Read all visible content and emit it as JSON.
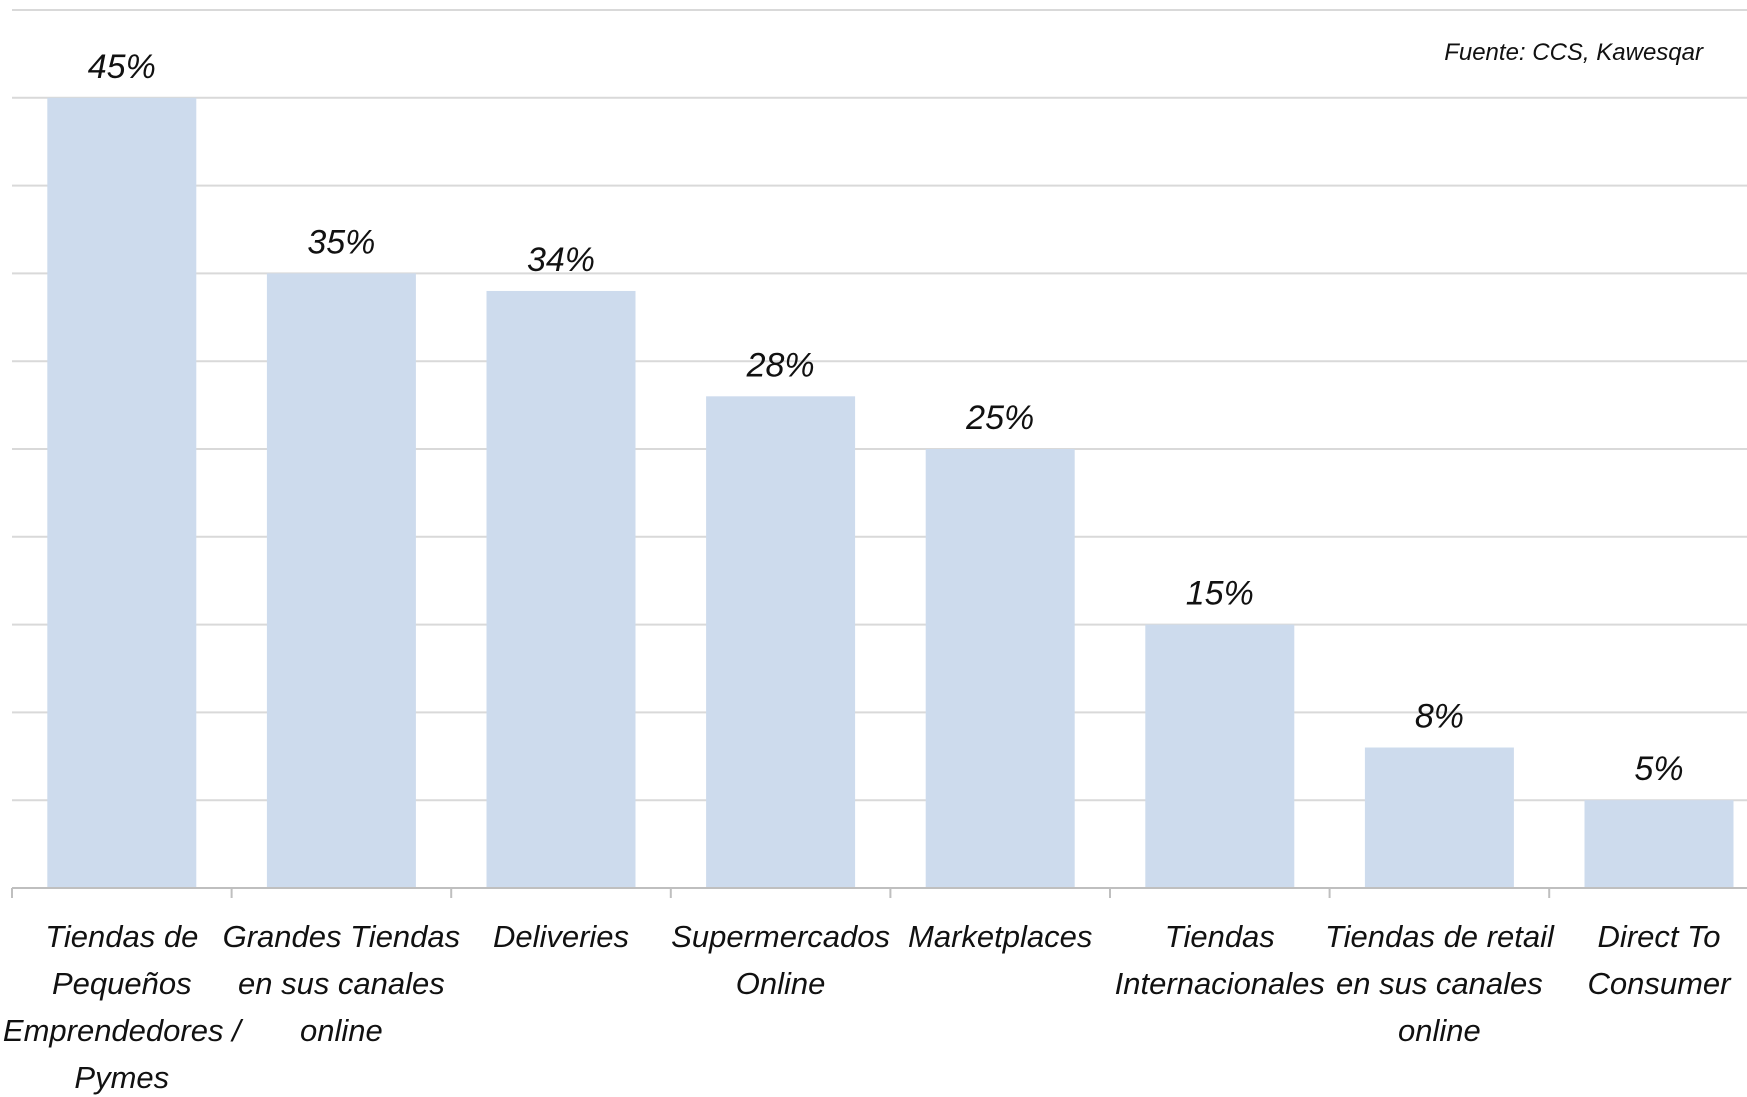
{
  "source_note": "Fuente: CCS, Kawesqar",
  "colors": {
    "bar": "#cddbed",
    "grid": "#d9d9d9",
    "axis": "#bfbfbf",
    "text": "#111111"
  },
  "chart_data": {
    "type": "bar",
    "categories": [
      "Tiendas de Pequeños Emprendedores / Pymes",
      "Grandes Tiendas en sus canales online",
      "Deliveries",
      "Supermercados Online",
      "Marketplaces",
      "Tiendas Internacionales",
      "Tiendas de retail en sus canales online",
      "Direct To Consumer"
    ],
    "category_lines": [
      [
        "Tiendas de",
        "Pequeños",
        "Emprendedores /",
        "Pymes"
      ],
      [
        "Grandes Tiendas",
        "en sus canales",
        "online"
      ],
      [
        "Deliveries"
      ],
      [
        "Supermercados",
        "Online"
      ],
      [
        "Marketplaces"
      ],
      [
        "Tiendas",
        "Internacionales"
      ],
      [
        "Tiendas de retail",
        "en sus canales",
        "online"
      ],
      [
        "Direct To",
        "Consumer"
      ]
    ],
    "values": [
      45,
      35,
      34,
      28,
      25,
      15,
      8,
      5
    ],
    "data_labels": [
      "45%",
      "35%",
      "34%",
      "28%",
      "25%",
      "15%",
      "8%",
      "5%"
    ],
    "ylim": [
      0,
      50
    ],
    "grid": true,
    "title": "",
    "xlabel": "",
    "ylabel": ""
  }
}
